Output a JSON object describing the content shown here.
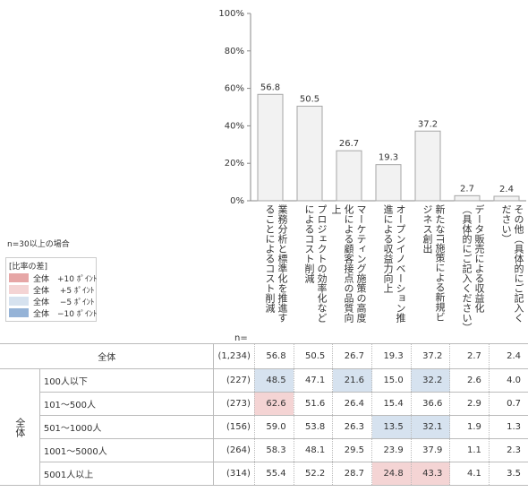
{
  "chart_data": {
    "type": "bar",
    "categories": [
      "業務分析と標準化を推進することによるコスト削減",
      "プロジェクトの効率化などによるコスト削減",
      "マーケティング施策の高度化による顧客接点の品質向上",
      "オープンイノベーション推進による収益力向上",
      "新たなIT施策による新規ビジネス創出",
      "データ販売による収益化（具体的にご記入ください）",
      "その他（具体的にご記入ください）"
    ],
    "values": [
      56.8,
      50.5,
      26.7,
      19.3,
      37.2,
      2.7,
      2.4
    ],
    "color": "#f2f2f2",
    "edge_color": "#a6a6a6",
    "ylim": [
      0,
      100
    ],
    "yticks": [
      {
        "value": 0,
        "label": "0%"
      },
      {
        "value": 20,
        "label": "20%"
      },
      {
        "value": 40,
        "label": "40%"
      },
      {
        "value": 60,
        "label": "60%"
      },
      {
        "value": 80,
        "label": "80%"
      },
      {
        "value": 100,
        "label": "100%"
      }
    ]
  },
  "legend": {
    "note": "n=30以上の場合",
    "title": "[比率の差]",
    "items": [
      {
        "label": "全体　+10 ﾎﾟｲﾝﾄ",
        "color": "#e6a6a6"
      },
      {
        "label": "全体　 +5 ﾎﾟｲﾝﾄ",
        "color": "#f4d4d4"
      },
      {
        "label": "全体　 −5 ﾎﾟｲﾝﾄ",
        "color": "#d6e2ef"
      },
      {
        "label": "全体　−10 ﾎﾟｲﾝﾄ",
        "color": "#95b3d7"
      }
    ]
  },
  "table": {
    "n_header": "n=",
    "total": {
      "label": "全体",
      "n": "(1,234)",
      "values": [
        "56.8",
        "50.5",
        "26.7",
        "19.3",
        "37.2",
        "2.7",
        "2.4"
      ]
    },
    "group_label": "全体",
    "rows": [
      {
        "label": "100人以下",
        "n": "(227)",
        "values": [
          "48.5",
          "47.1",
          "21.6",
          "15.0",
          "32.2",
          "2.6",
          "4.0"
        ],
        "highlight": {
          "0": "#d6e2ef",
          "2": "#d6e2ef",
          "4": "#d6e2ef"
        }
      },
      {
        "label": "101～500人",
        "n": "(273)",
        "values": [
          "62.6",
          "51.6",
          "26.4",
          "15.4",
          "36.6",
          "2.9",
          "0.7"
        ],
        "highlight": {
          "0": "#f4d4d4"
        }
      },
      {
        "label": "501～1000人",
        "n": "(156)",
        "values": [
          "59.0",
          "53.8",
          "26.3",
          "13.5",
          "32.1",
          "1.9",
          "1.3"
        ],
        "highlight": {
          "3": "#d6e2ef",
          "4": "#d6e2ef"
        }
      },
      {
        "label": "1001～5000人",
        "n": "(264)",
        "values": [
          "58.3",
          "48.1",
          "29.5",
          "23.9",
          "37.9",
          "1.1",
          "2.3"
        ],
        "highlight": {}
      },
      {
        "label": "5001人以上",
        "n": "(314)",
        "values": [
          "55.4",
          "52.2",
          "28.7",
          "24.8",
          "43.3",
          "4.1",
          "3.5"
        ],
        "highlight": {
          "3": "#f4d4d4",
          "4": "#f4d4d4"
        }
      }
    ]
  }
}
